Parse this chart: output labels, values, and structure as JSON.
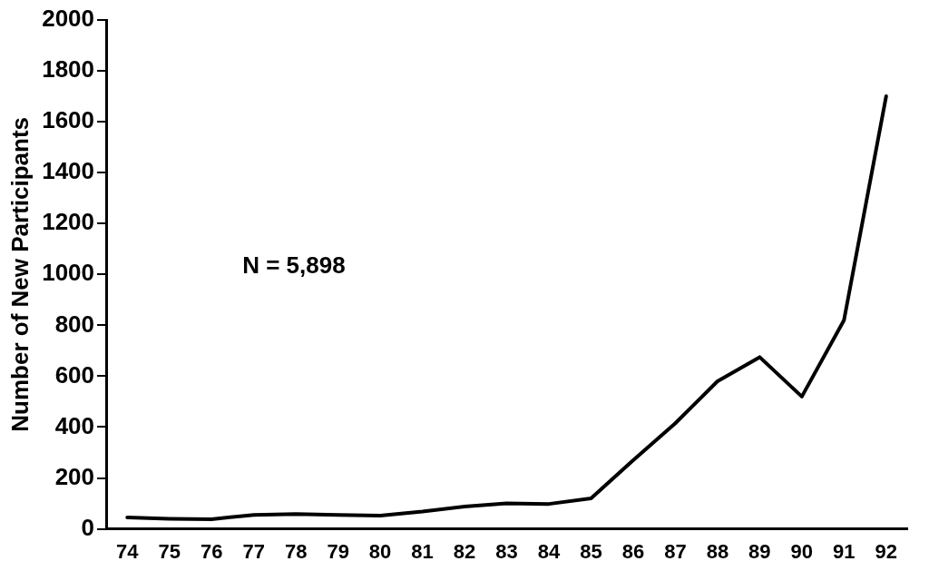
{
  "chart_data": {
    "type": "line",
    "ylabel": "Number of New Participants",
    "categories": [
      "74",
      "75",
      "76",
      "77",
      "78",
      "79",
      "80",
      "81",
      "82",
      "83",
      "84",
      "85",
      "86",
      "87",
      "88",
      "89",
      "90",
      "91",
      "92"
    ],
    "values": [
      45,
      40,
      38,
      55,
      58,
      55,
      52,
      68,
      88,
      100,
      98,
      120,
      270,
      415,
      580,
      675,
      520,
      820,
      1700
    ],
    "color": "#000000",
    "ylim": [
      0,
      2000
    ],
    "yticks": [
      0,
      200,
      400,
      600,
      800,
      1000,
      1200,
      1400,
      1600,
      1800,
      2000
    ],
    "grid": false,
    "legend": false,
    "marker": "none",
    "line_style": "solid",
    "annotations": [
      "N = 5,898"
    ]
  }
}
